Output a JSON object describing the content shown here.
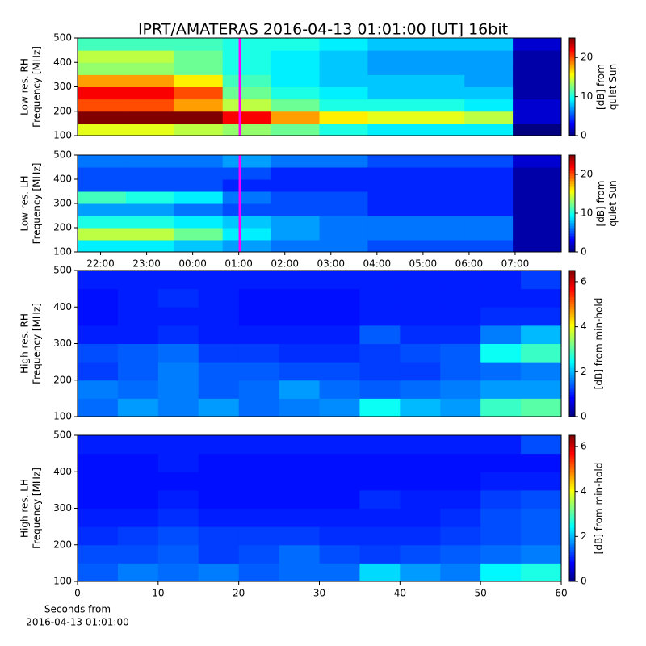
{
  "title": "IPRT/AMATERAS 2016-04-13 01:01:00 [UT]   16bit",
  "chart_data": [
    {
      "type": "heatmap",
      "colormap": "jet",
      "ylabel": [
        "Low res. RH",
        "Frequency [MHz]"
      ],
      "colorbar_label": [
        "[dB] from",
        "quiet Sun"
      ],
      "xlim": [
        21.5,
        32
      ],
      "ylim": [
        100,
        500
      ],
      "yticks": [
        100,
        200,
        300,
        400,
        500
      ],
      "zlim": [
        0,
        25
      ],
      "zticks": [
        0,
        10,
        20
      ],
      "marker_x": 25.02,
      "marker_color": "#ff00ff",
      "z": [
        [
          15,
          15,
          14,
          13,
          12,
          10,
          9,
          9,
          9,
          0
        ],
        [
          25,
          25,
          25,
          22,
          18,
          16,
          15,
          15,
          14,
          2
        ],
        [
          20,
          20,
          18,
          14,
          12,
          10,
          10,
          10,
          9,
          2
        ],
        [
          22,
          22,
          20,
          12,
          10,
          9,
          8,
          8,
          8,
          1
        ],
        [
          18,
          18,
          16,
          11,
          9,
          8,
          8,
          8,
          7,
          1
        ],
        [
          13,
          13,
          12,
          10,
          9,
          8,
          7,
          7,
          7,
          1
        ],
        [
          14,
          14,
          12,
          10,
          9,
          8,
          7,
          7,
          7,
          1
        ],
        [
          11,
          11,
          11,
          10,
          10,
          9,
          8,
          8,
          8,
          2
        ]
      ]
    },
    {
      "type": "heatmap",
      "colormap": "jet",
      "ylabel": [
        "Low res. LH",
        "Frequency [MHz]"
      ],
      "colorbar_label": [
        "[dB] from",
        "quiet Sun"
      ],
      "xlim": [
        21.5,
        32
      ],
      "xticks": [
        {
          "value": 22,
          "label": "22:00"
        },
        {
          "value": 23,
          "label": "23:00"
        },
        {
          "value": 24,
          "label": "00:00"
        },
        {
          "value": 25,
          "label": "01:00"
        },
        {
          "value": 26,
          "label": "02:00"
        },
        {
          "value": 27,
          "label": "03:00"
        },
        {
          "value": 28,
          "label": "04:00"
        },
        {
          "value": 29,
          "label": "05:00"
        },
        {
          "value": 30,
          "label": "06:00"
        },
        {
          "value": 31,
          "label": "07:00"
        }
      ],
      "ylim": [
        100,
        500
      ],
      "yticks": [
        100,
        200,
        300,
        400,
        500
      ],
      "zlim": [
        0,
        25
      ],
      "zticks": [
        0,
        10,
        20
      ],
      "marker_x": 25.02,
      "marker_color": "#ff00ff",
      "z": [
        [
          9,
          9,
          8,
          7,
          6,
          6,
          5,
          5,
          5,
          1
        ],
        [
          14,
          14,
          12,
          9,
          7,
          6,
          6,
          6,
          6,
          1
        ],
        [
          10,
          10,
          9,
          8,
          7,
          6,
          6,
          6,
          6,
          1
        ],
        [
          7,
          7,
          6,
          5,
          5,
          5,
          4,
          4,
          4,
          1
        ],
        [
          11,
          10,
          9,
          6,
          5,
          5,
          4,
          4,
          4,
          1
        ],
        [
          5,
          5,
          5,
          4,
          4,
          4,
          4,
          4,
          4,
          1
        ],
        [
          5,
          5,
          5,
          5,
          4,
          4,
          4,
          4,
          4,
          1
        ],
        [
          6,
          6,
          6,
          7,
          6,
          6,
          5,
          5,
          5,
          2
        ]
      ]
    },
    {
      "type": "heatmap",
      "colormap": "jet",
      "ylabel": [
        "High res. RH",
        "Frequency [MHz]"
      ],
      "colorbar_label": [
        "[dB] from min-hold"
      ],
      "xlim": [
        0,
        60
      ],
      "ylim": [
        100,
        500
      ],
      "yticks": [
        100,
        200,
        300,
        400,
        500
      ],
      "zlim": [
        0,
        6.5
      ],
      "zticks": [
        0,
        2,
        4,
        6
      ],
      "z": [
        [
          1.5,
          1.8,
          1.6,
          1.8,
          1.5,
          1.6,
          1.7,
          2.5,
          2,
          1.8,
          2.8,
          3
        ],
        [
          1.6,
          1.5,
          1.6,
          1.4,
          1.5,
          1.8,
          1.5,
          1.4,
          1.5,
          1.6,
          1.8,
          1.8
        ],
        [
          1.2,
          1.4,
          1.6,
          1.4,
          1.4,
          1.3,
          1.3,
          1.2,
          1.2,
          1.4,
          1.5,
          1.6
        ],
        [
          1.3,
          1.4,
          1.5,
          1.2,
          1.2,
          1.1,
          1.1,
          1.2,
          1.3,
          1.4,
          2.5,
          2.8
        ],
        [
          1,
          1,
          1.1,
          1,
          1,
          1,
          1,
          1.4,
          1.1,
          1.1,
          1.6,
          2
        ],
        [
          0.9,
          1,
          1,
          1,
          0.9,
          0.9,
          0.9,
          1,
          1,
          1,
          1.1,
          1.1
        ],
        [
          0.9,
          1,
          1.1,
          1,
          0.9,
          0.9,
          0.9,
          1,
          1,
          1,
          1,
          1
        ],
        [
          1,
          1,
          1,
          1,
          1,
          1,
          1,
          1,
          1,
          1,
          1,
          1.2
        ]
      ]
    },
    {
      "type": "heatmap",
      "colormap": "jet",
      "ylabel": [
        "High res. LH",
        "Frequency [MHz]"
      ],
      "colorbar_label": [
        "[dB] from min-hold"
      ],
      "xlabel": [
        "Seconds from",
        "2016-04-13 01:01:00"
      ],
      "xlim": [
        0,
        60
      ],
      "xticks": [
        0,
        10,
        20,
        30,
        40,
        50,
        60
      ],
      "ylim": [
        100,
        500
      ],
      "yticks": [
        100,
        200,
        300,
        400,
        500
      ],
      "zlim": [
        0,
        6.5
      ],
      "zticks": [
        0,
        2,
        4,
        6
      ],
      "z": [
        [
          1.4,
          1.6,
          1.5,
          1.6,
          1.4,
          1.5,
          1.5,
          2.2,
          1.8,
          1.6,
          2.4,
          2.6
        ],
        [
          1.3,
          1.3,
          1.4,
          1.2,
          1.3,
          1.5,
          1.3,
          1.2,
          1.3,
          1.4,
          1.5,
          1.6
        ],
        [
          1.1,
          1.2,
          1.3,
          1.2,
          1.2,
          1.2,
          1.1,
          1.1,
          1.1,
          1.2,
          1.3,
          1.4
        ],
        [
          1,
          1,
          1.1,
          1,
          1,
          1,
          1,
          1,
          1,
          1.1,
          1.3,
          1.4
        ],
        [
          0.9,
          0.9,
          1,
          0.9,
          0.9,
          0.9,
          0.9,
          1.1,
          1,
          1,
          1.2,
          1.3
        ],
        [
          0.9,
          0.9,
          0.9,
          0.9,
          0.9,
          0.9,
          0.9,
          0.9,
          0.9,
          0.9,
          1,
          1
        ],
        [
          0.9,
          0.9,
          1,
          0.9,
          0.9,
          0.9,
          0.9,
          0.9,
          0.9,
          0.9,
          0.9,
          0.9
        ],
        [
          1,
          1,
          1,
          1,
          1,
          1,
          1,
          1,
          1,
          1,
          1,
          1.3
        ]
      ]
    }
  ]
}
